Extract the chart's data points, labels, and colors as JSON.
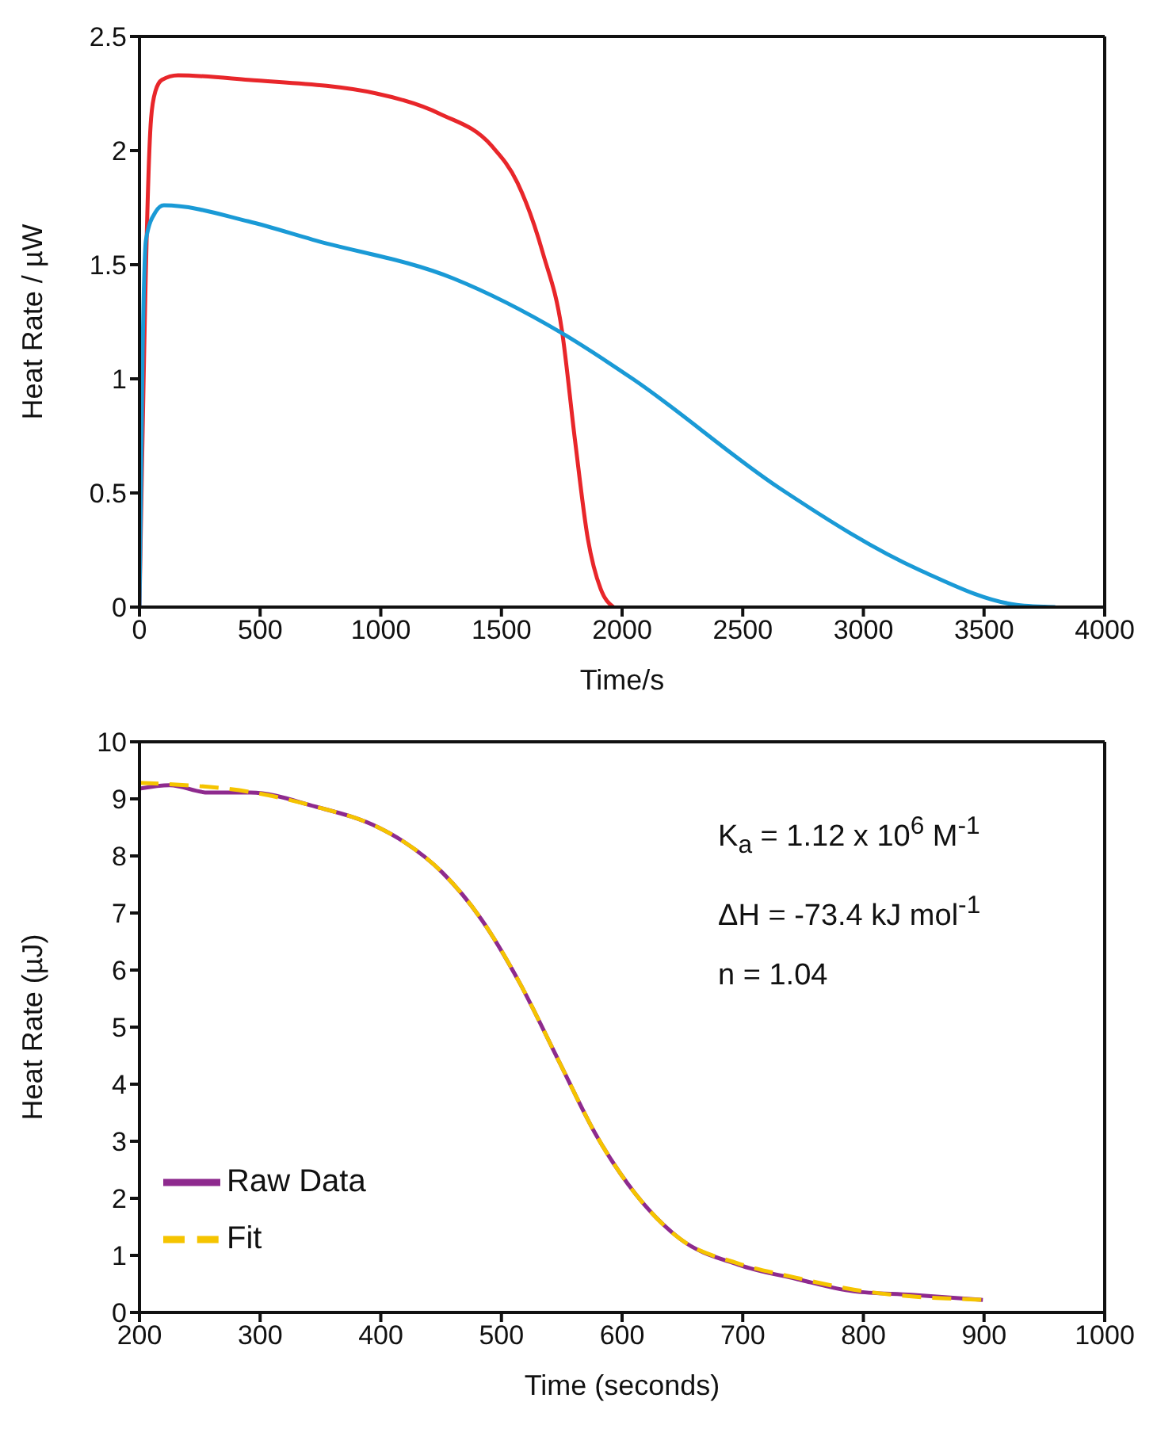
{
  "chart_data": [
    {
      "type": "line",
      "xlabel": "Time/s",
      "ylabel": "Heat Rate / µW",
      "xlim": [
        0,
        4000
      ],
      "xticks": [
        0,
        500,
        1000,
        1500,
        2000,
        2500,
        3000,
        3500,
        4000
      ],
      "ylim": [
        0,
        2.5
      ],
      "yticks": [
        0,
        0.5,
        1,
        1.5,
        2,
        2.5
      ],
      "grid": false,
      "legend": false,
      "marker": "none",
      "series": [
        {
          "color": "#e8262a",
          "x": [
            0,
            48,
            66,
            93,
            160,
            451,
            982,
            1247,
            1460,
            1566,
            1672,
            1751,
            1805,
            1858,
            1911,
            1964
          ],
          "values": [
            0,
            2.14,
            2.26,
            2.31,
            2.33,
            2.31,
            2.25,
            2.16,
            2.02,
            1.86,
            1.55,
            1.21,
            0.73,
            0.3,
            0.08,
            0
          ]
        },
        {
          "color": "#1a9ad6",
          "x": [
            0,
            13,
            27,
            66,
            101,
            451,
            717,
            1300,
            1751,
            2044,
            2654,
            3238,
            3636,
            3795
          ],
          "values": [
            0,
            1.12,
            1.61,
            1.73,
            1.76,
            1.69,
            1.61,
            1.44,
            1.2,
            1.0,
            0.52,
            0.16,
            0.01,
            0
          ]
        }
      ]
    },
    {
      "type": "line",
      "xlabel": "Time (seconds)",
      "ylabel": "Heat Rate (µJ)",
      "xlim": [
        200,
        1000
      ],
      "xticks": [
        200,
        300,
        400,
        500,
        600,
        700,
        800,
        900,
        1000
      ],
      "ylim": [
        0,
        10
      ],
      "yticks": [
        0,
        1,
        2,
        3,
        4,
        5,
        6,
        7,
        8,
        9,
        10
      ],
      "grid": false,
      "legend": "bottom left",
      "marker": "none",
      "annotations": [
        "K$_{a}$ = 1.12 x 10$^{6}$ M$^{-1}$",
        "ΔH = -73.4 kJ mol$^{-1}$",
        "n = 1.04"
      ],
      "series": [
        {
          "name": "Raw Data",
          "color": "#8e2a8e",
          "line_style": "solid",
          "x": [
            200,
            225,
            257,
            292,
            345,
            398,
            419,
            451,
            483,
            515,
            547,
            579,
            611,
            648,
            696,
            744,
            792,
            840,
            899
          ],
          "values": [
            9.18,
            9.24,
            9.11,
            9.11,
            8.87,
            8.5,
            8.25,
            7.71,
            6.9,
            5.78,
            4.43,
            3.09,
            2.08,
            1.29,
            0.84,
            0.59,
            0.37,
            0.31,
            0.22
          ]
        },
        {
          "name": "Fit",
          "color": "#f5c400",
          "line_style": "dashed",
          "x": [
            200,
            292,
            345,
            398,
            419,
            451,
            483,
            515,
            547,
            579,
            611,
            648,
            696,
            744,
            792,
            840,
            877,
            899
          ],
          "values": [
            9.28,
            9.12,
            8.87,
            8.5,
            8.25,
            7.71,
            6.9,
            5.78,
            4.43,
            3.09,
            2.08,
            1.29,
            0.86,
            0.61,
            0.4,
            0.28,
            0.24,
            0.22
          ]
        }
      ]
    }
  ]
}
